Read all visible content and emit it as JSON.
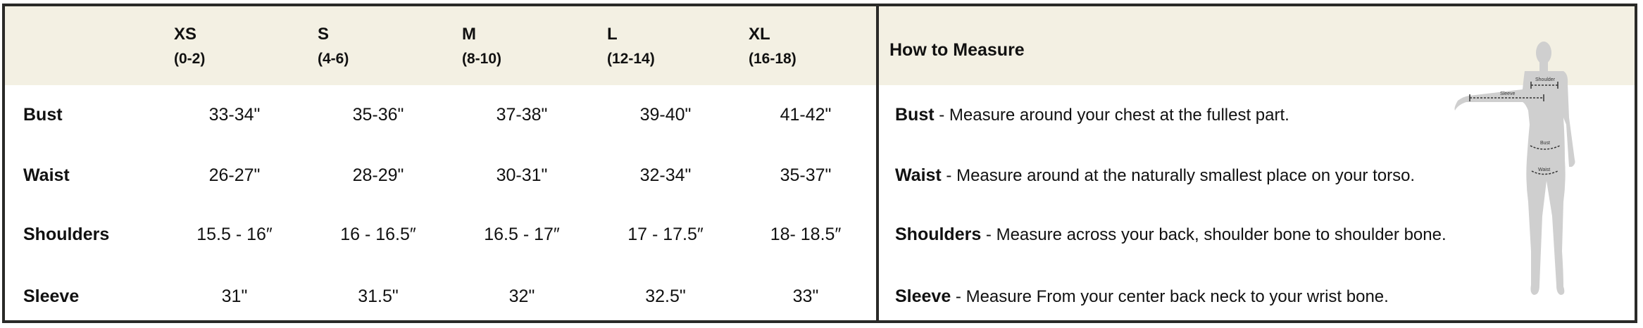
{
  "sizes": [
    {
      "label": "XS",
      "range": "(0-2)"
    },
    {
      "label": "S",
      "range": "(4-6)"
    },
    {
      "label": "M",
      "range": "(8-10)"
    },
    {
      "label": "L",
      "range": "(12-14)"
    },
    {
      "label": "XL",
      "range": "(16-18)"
    }
  ],
  "rows": [
    {
      "label": "Bust",
      "values": [
        "33-34\"",
        "35-36\"",
        "37-38\"",
        "39-40\"",
        "41-42\""
      ]
    },
    {
      "label": "Waist",
      "values": [
        "26-27\"",
        "28-29\"",
        "30-31\"",
        "32-34\"",
        "35-37\""
      ]
    },
    {
      "label": "Shoulders",
      "values": [
        "15.5 - 16″",
        "16 - 16.5″",
        "16.5 - 17″",
        "17 - 17.5″",
        "18- 18.5″"
      ]
    },
    {
      "label": "Sleeve",
      "values": [
        "31\"",
        "31.5\"",
        "32\"",
        "32.5\"",
        "33\""
      ]
    }
  ],
  "how_to": {
    "title": "How to Measure",
    "items": [
      {
        "term": "Bust",
        "text": " - Measure around your chest at the fullest part."
      },
      {
        "term": "Waist",
        "text": " - Measure around at the naturally smallest place on your torso."
      },
      {
        "term": "Shoulders",
        "text": " - Measure across your back, shoulder bone to shoulder bone."
      },
      {
        "term": "Sleeve",
        "text": " - Measure From your center back neck to your wrist bone."
      }
    ],
    "figure_labels": {
      "shoulder": "Shoulder",
      "sleeve": "Sleeve",
      "bust": "Bust",
      "waist": "Waist"
    }
  },
  "colors": {
    "header_bg": "#f3f0e3",
    "border": "#2a2a28",
    "figure": "#cfcfcf"
  }
}
